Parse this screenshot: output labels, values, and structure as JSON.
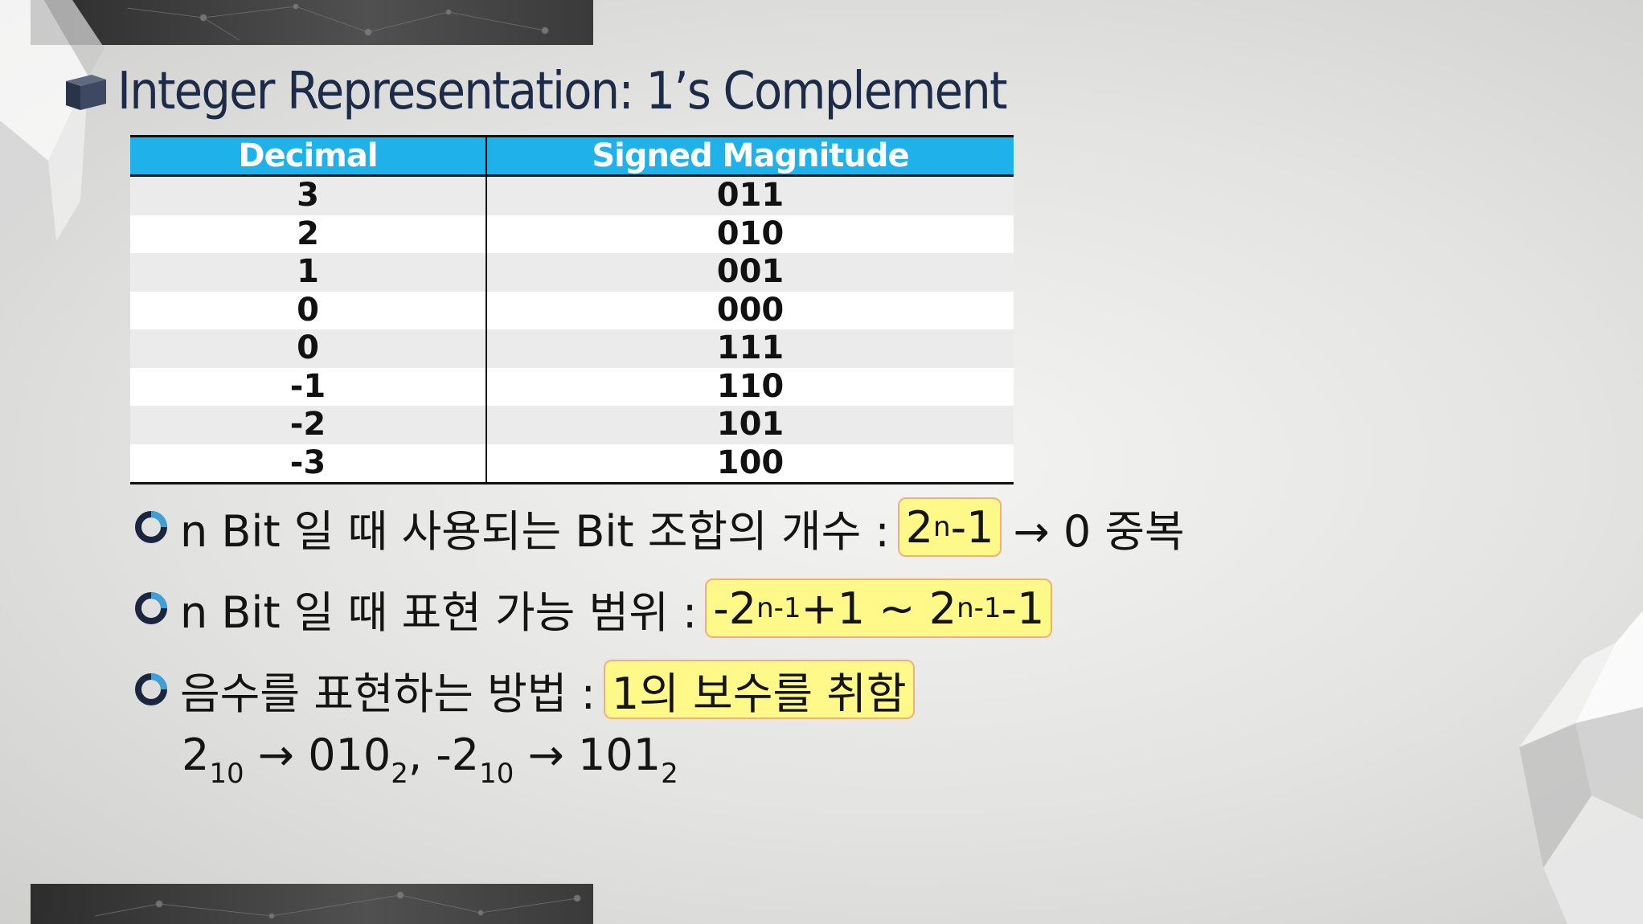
{
  "slide": {
    "title": "Integer Representation: 1’s Complement"
  },
  "table": {
    "headers": [
      "Decimal",
      "Signed Magnitude"
    ],
    "rows": [
      [
        "3",
        "011"
      ],
      [
        "2",
        "010"
      ],
      [
        "1",
        "001"
      ],
      [
        "0",
        "000"
      ],
      [
        "0",
        "111"
      ],
      [
        "-1",
        "110"
      ],
      [
        "-2",
        "101"
      ],
      [
        "-3",
        "100"
      ]
    ]
  },
  "bullets": {
    "b1": {
      "prefix": "n Bit 일 때 사용되는 Bit 조합의 개수 :",
      "hl_base": "2",
      "hl_sup": "n",
      "hl_tail": "-1",
      "suffix": "→ 0 중복"
    },
    "b2": {
      "prefix": "n Bit 일 때 표현 가능 범위 :",
      "p1": "-2",
      "s1": "n-1",
      "p2": "+1 ~ 2",
      "s2": "n-1",
      "p3": "-1"
    },
    "b3": {
      "prefix": "음수를 표현하는 방법 :",
      "highlight": "1의 보수를 취함"
    },
    "example": {
      "a": "2",
      "a_sub": "10",
      "arrow1": "→",
      "b": "010",
      "b_sub": "2",
      "sep": ",",
      "c": "-2",
      "c_sub": "10",
      "arrow2": "→",
      "d": "101",
      "d_sub": "2"
    }
  },
  "colors": {
    "header_bg": "#1fb2ea",
    "title": "#1c2c48",
    "highlight": "#fff98a",
    "highlight_border": "#f1b07a"
  }
}
